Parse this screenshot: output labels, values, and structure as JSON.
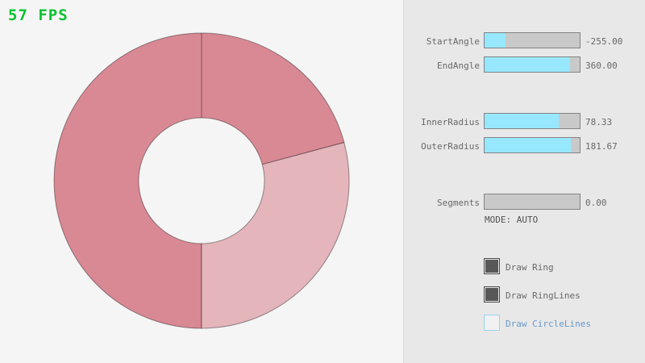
{
  "fps": {
    "label": "57 FPS",
    "color": "#0ac232"
  },
  "ring": {
    "colors": {
      "single_coverage": "#e5b5bc",
      "double_coverage": "#d98994",
      "outline": "rgba(0,0,0,0.4)"
    }
  },
  "panel": {
    "sliders": [
      {
        "label": "StartAngle",
        "value": "-255.00",
        "fill_pct": 21.7,
        "fill_color": "#97e8ff"
      },
      {
        "label": "EndAngle",
        "value": "360.00",
        "fill_pct": 90.0,
        "fill_color": "#97e8ff"
      },
      {
        "label": "InnerRadius",
        "value": "78.33",
        "fill_pct": 78.3,
        "fill_color": "#97e8ff"
      },
      {
        "label": "OuterRadius",
        "value": "181.67",
        "fill_pct": 90.8,
        "fill_color": "#97e8ff"
      },
      {
        "label": "Segments",
        "value": "0.00",
        "fill_pct": 0,
        "fill_color": "#97e8ff"
      }
    ],
    "mode_text": "MODE: AUTO",
    "checkboxes": [
      {
        "label": "Draw Ring",
        "checked": true,
        "label_color": "#686868"
      },
      {
        "label": "Draw RingLines",
        "checked": true,
        "label_color": "#686868"
      },
      {
        "label": "Draw CircleLines",
        "checked": false,
        "label_color": "#6699cc",
        "box_border_color": "#9ad2ef"
      }
    ]
  }
}
